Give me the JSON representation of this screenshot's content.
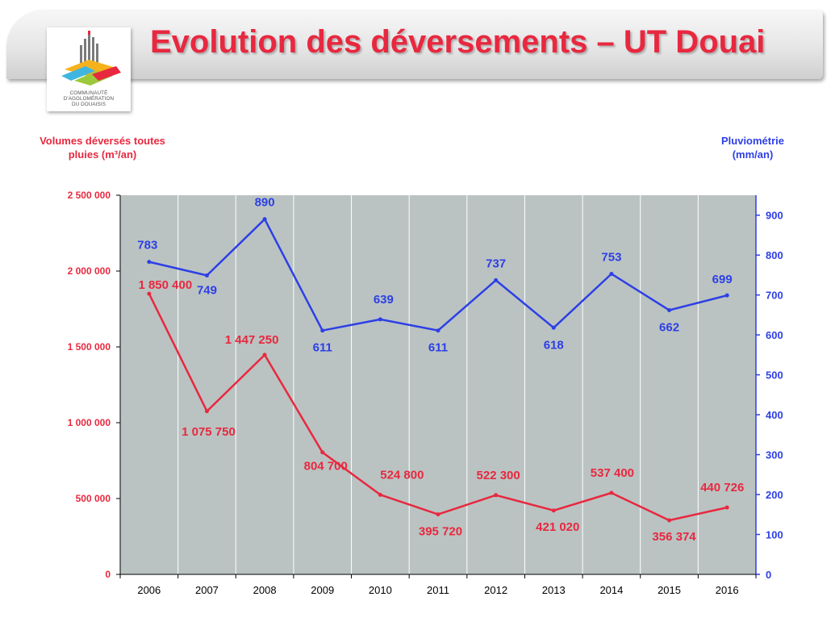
{
  "header": {
    "title": "Evolution des déversements – UT Douai",
    "logo": {
      "icon": "douaisis-agglomeration-logo",
      "lines": [
        "COMMUNAUTÉ",
        "D'AGGLOMÉRATION",
        "DU DOUAISIS"
      ]
    }
  },
  "colors": {
    "volumes": "#e8283f",
    "rainfall": "#2d3fe6",
    "plot_bg": "#bac3c2",
    "grid": "#ffffff"
  },
  "chart_data": {
    "type": "line",
    "categories": [
      "2006",
      "2007",
      "2008",
      "2009",
      "2010",
      "2011",
      "2012",
      "2013",
      "2014",
      "2015",
      "2016"
    ],
    "y_left": {
      "title_line1": "Volumes déversés toutes",
      "title_line2": "pluies (m³/an)",
      "range": [
        0,
        2500000
      ],
      "ticks": [
        0,
        500000,
        1000000,
        1500000,
        2000000,
        2500000
      ],
      "tick_labels": [
        "0",
        "500 000",
        "1 000 000",
        "1 500 000",
        "2 000 000",
        "2 500 000"
      ]
    },
    "y_right": {
      "title_line1": "Pluviométrie",
      "title_line2": "(mm/an)",
      "range": [
        0,
        950
      ],
      "ticks": [
        0,
        100,
        200,
        300,
        400,
        500,
        600,
        700,
        800,
        900
      ],
      "tick_labels": [
        "0",
        "100",
        "200",
        "300",
        "400",
        "500",
        "600",
        "700",
        "800",
        "900"
      ]
    },
    "series": [
      {
        "axis": "left",
        "values": [
          1850400,
          1075750,
          1447250,
          804700,
          524800,
          395720,
          522300,
          421020,
          537400,
          356374,
          440726
        ],
        "labels": [
          "1 850 400",
          "1 075 750",
          "1 447 250",
          "804 700",
          "524 800",
          "395 720",
          "522 300",
          "421 020",
          "537 400",
          "356 374",
          "440 726"
        ]
      },
      {
        "axis": "right",
        "values": [
          783,
          749,
          890,
          611,
          639,
          611,
          737,
          618,
          753,
          662,
          699
        ],
        "labels": [
          "783",
          "749",
          "890",
          "611",
          "639",
          "611",
          "737",
          "618",
          "753",
          "662",
          "699"
        ]
      }
    ],
    "grid": "vertical",
    "legend": "none"
  }
}
